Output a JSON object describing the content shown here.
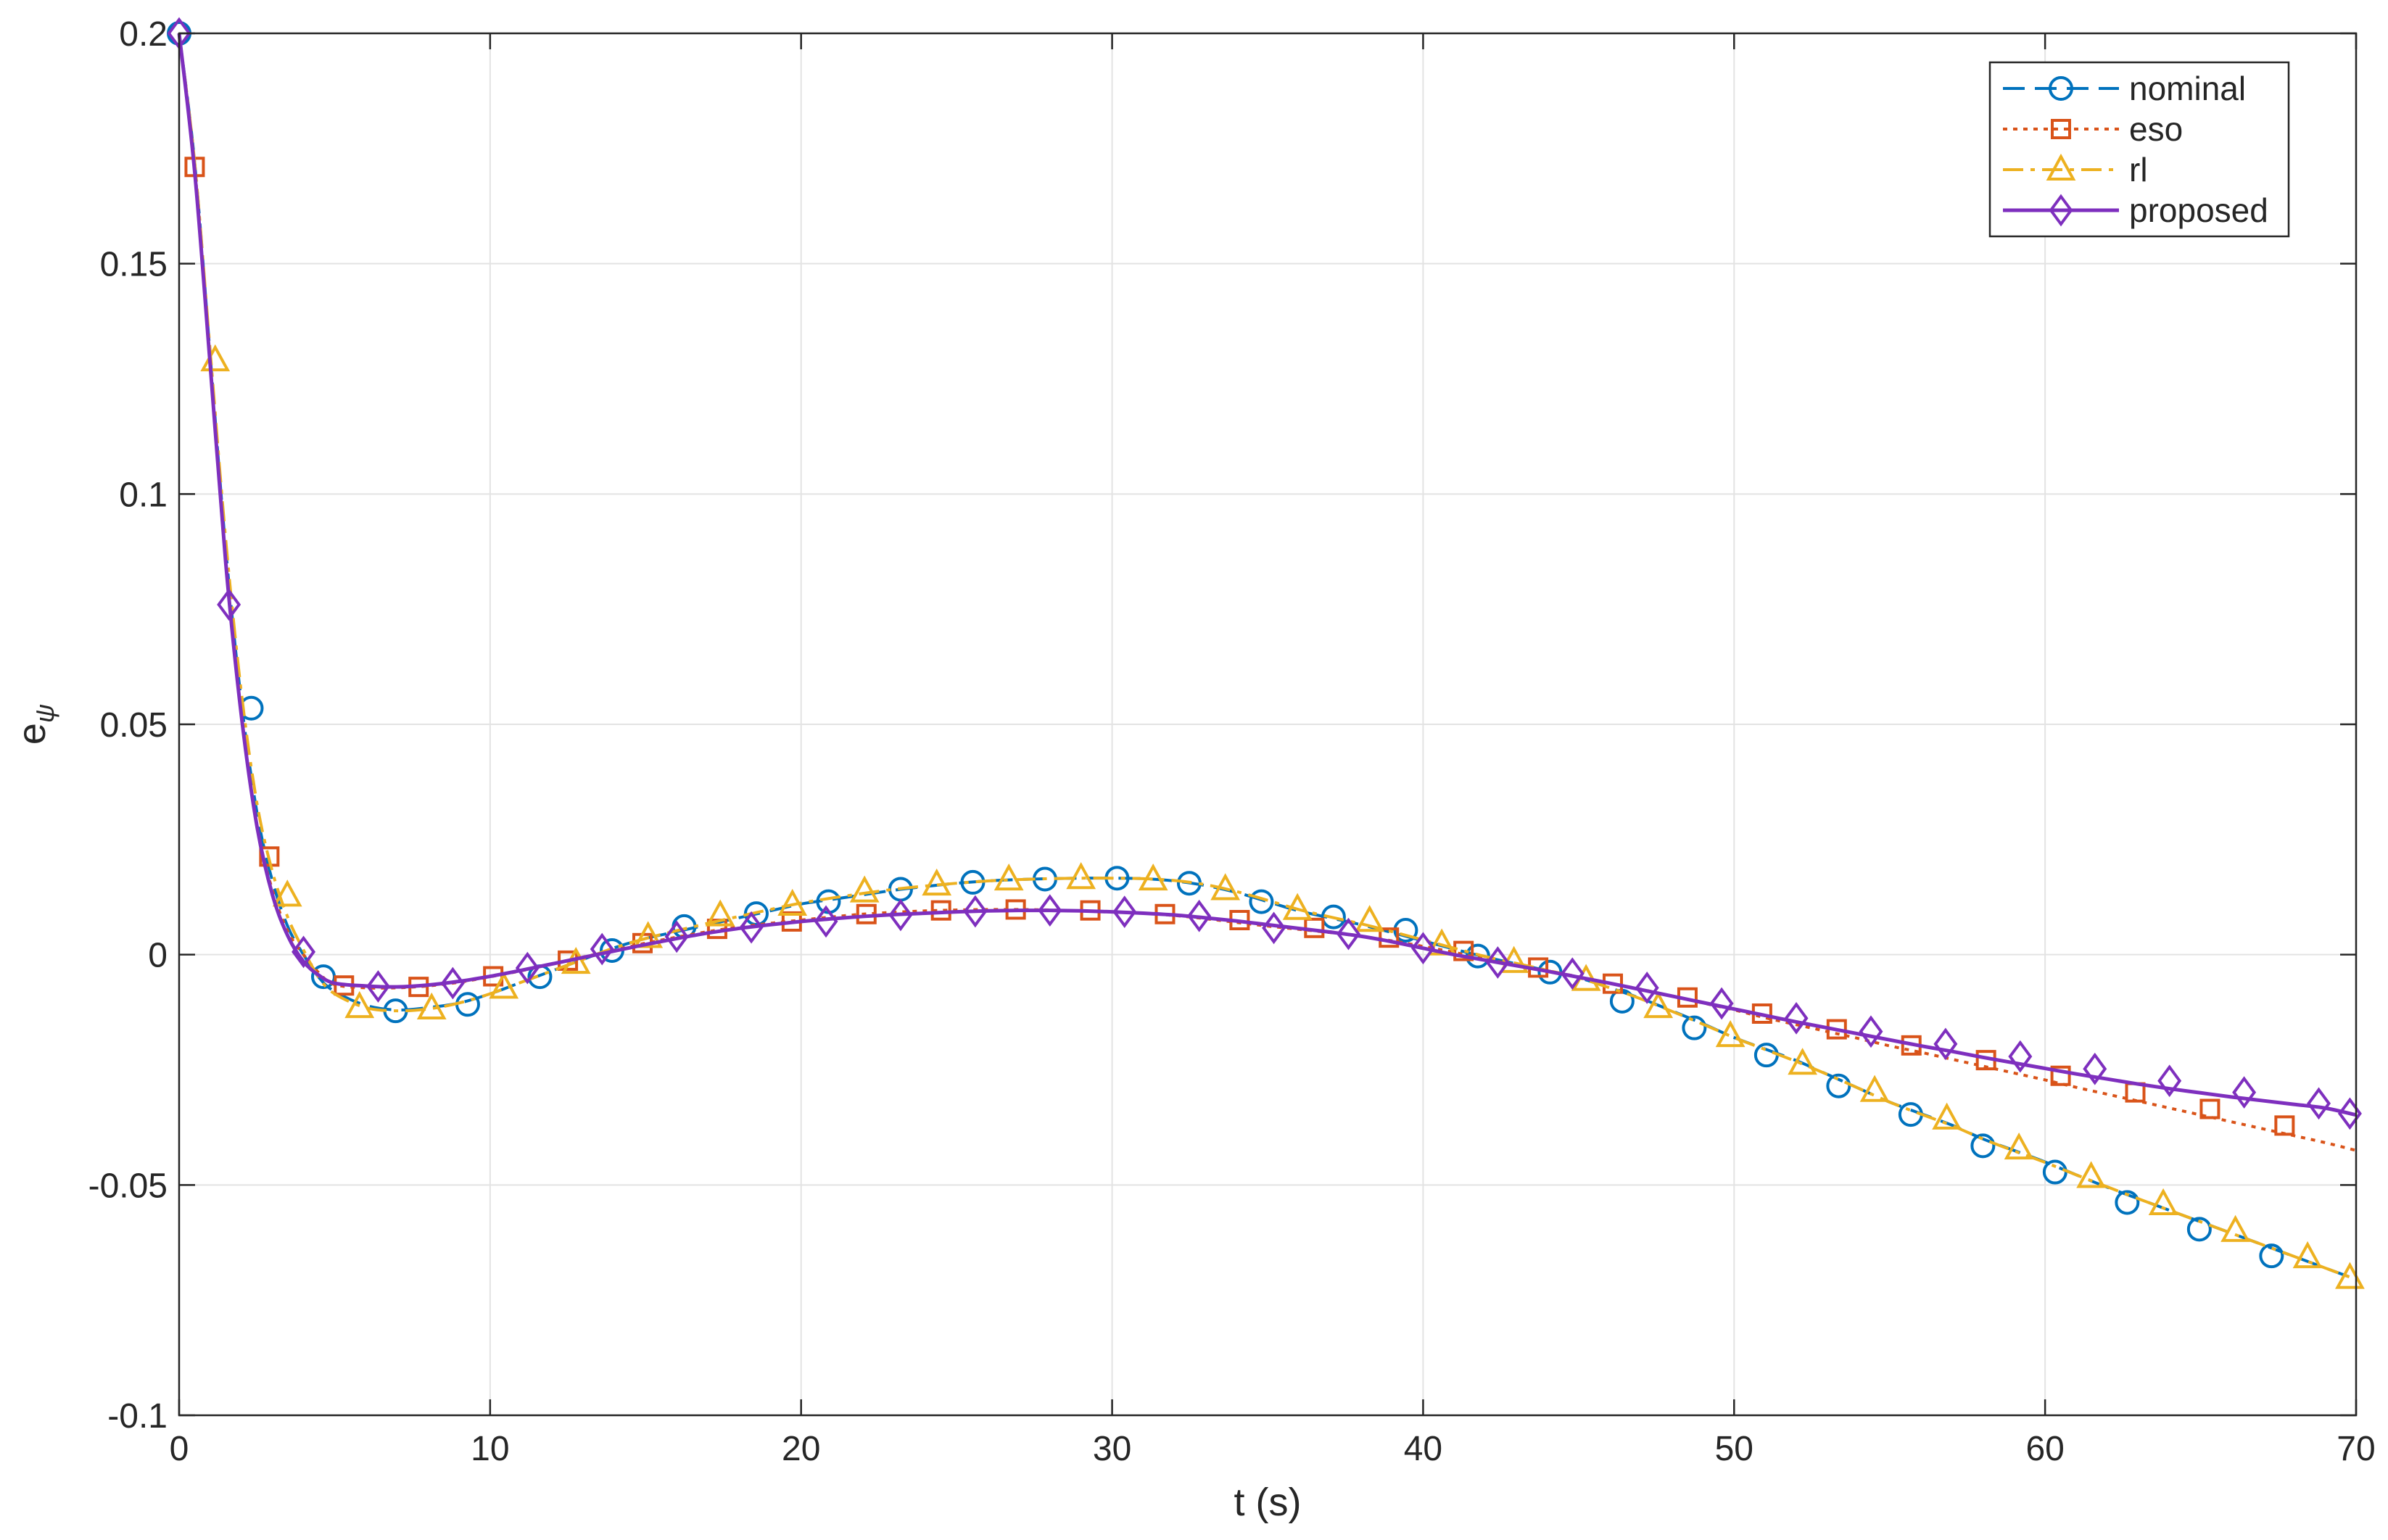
{
  "chart_data": {
    "type": "line",
    "xlabel": "t (s)",
    "ylabel_base": "e",
    "ylabel_sub": "ψ",
    "xlim": [
      0,
      70
    ],
    "ylim": [
      -0.1,
      0.2
    ],
    "xticks": [
      0,
      10,
      20,
      30,
      40,
      50,
      60,
      70
    ],
    "xtick_labels": [
      "0",
      "10",
      "20",
      "30",
      "40",
      "50",
      "60",
      "70"
    ],
    "yticks": [
      -0.1,
      -0.05,
      0,
      0.05,
      0.1,
      0.15,
      0.2
    ],
    "ytick_labels": [
      "-0.1",
      "-0.05",
      "0",
      "0.05",
      "0.1",
      "0.15",
      "0.2"
    ],
    "grid": true,
    "legend_position": "top-right",
    "series": [
      {
        "name": "nominal",
        "color": "#0072BD",
        "dash": "dashed",
        "marker": "circle",
        "x": [
          0,
          0.5,
          1,
          1.5,
          2,
          2.5,
          3,
          3.5,
          4,
          4.5,
          5,
          6,
          7,
          8,
          9,
          10,
          11,
          12,
          13,
          14,
          15,
          16,
          17,
          18,
          19,
          20,
          21,
          22,
          23,
          24,
          25,
          26,
          27,
          28,
          29,
          30,
          31,
          32,
          33,
          34,
          35,
          36,
          37,
          38,
          39,
          40,
          41,
          42,
          43,
          44,
          45,
          46,
          47,
          48,
          49,
          50,
          51,
          52,
          53,
          54,
          55,
          56,
          57,
          58,
          59,
          60,
          61,
          62,
          63,
          64,
          65,
          66,
          67,
          68,
          69,
          70
        ],
        "y": [
          0.2,
          0.172,
          0.13,
          0.088,
          0.055,
          0.031,
          0.016,
          0.006,
          0.0,
          -0.005,
          -0.008,
          -0.011,
          -0.012,
          -0.0115,
          -0.0105,
          -0.0085,
          -0.006,
          -0.0035,
          -0.001,
          0.0015,
          0.0035,
          0.005,
          0.0065,
          0.008,
          0.0095,
          0.011,
          0.012,
          0.013,
          0.014,
          0.0148,
          0.0155,
          0.016,
          0.0163,
          0.0165,
          0.0166,
          0.0166,
          0.0165,
          0.016,
          0.015,
          0.0135,
          0.0115,
          0.0095,
          0.008,
          0.0065,
          0.0048,
          0.003,
          0.0012,
          -0.0005,
          -0.002,
          -0.0035,
          -0.005,
          -0.0072,
          -0.0095,
          -0.0122,
          -0.015,
          -0.018,
          -0.0205,
          -0.023,
          -0.026,
          -0.029,
          -0.032,
          -0.0345,
          -0.037,
          -0.04,
          -0.0425,
          -0.045,
          -0.0478,
          -0.0505,
          -0.053,
          -0.0555,
          -0.058,
          -0.0605,
          -0.063,
          -0.0655,
          -0.068,
          -0.0705
        ],
        "marker_x": [
          0,
          2.32,
          4.64,
          6.96,
          9.28,
          11.6,
          13.92,
          16.24,
          18.56,
          20.88,
          23.2,
          25.52,
          27.84,
          30.16,
          32.48,
          34.8,
          37.12,
          39.44,
          41.76,
          44.08,
          46.4,
          48.72,
          51.04,
          53.36,
          55.68,
          58.0,
          60.32,
          62.64,
          64.96,
          67.28
        ],
        "marker_y": [
          0.2,
          0.0535,
          -0.0048,
          -0.0122,
          -0.0108,
          -0.0048,
          0.0009,
          0.0061,
          0.0089,
          0.0115,
          0.0142,
          0.0157,
          0.0164,
          0.0166,
          0.0155,
          0.0115,
          0.0082,
          0.0053,
          -0.0003,
          -0.0038,
          -0.0101,
          -0.0159,
          -0.0218,
          -0.0285,
          -0.0347,
          -0.0415,
          -0.0472,
          -0.0538,
          -0.0596,
          -0.0654
        ]
      },
      {
        "name": "eso",
        "color": "#D95319",
        "dash": "dotted",
        "marker": "square",
        "x": [
          0,
          0.5,
          1,
          1.5,
          2,
          2.5,
          3,
          3.5,
          4,
          4.5,
          5,
          6,
          7,
          8,
          9,
          10,
          11,
          12,
          13,
          14,
          15,
          16,
          17,
          18,
          19,
          20,
          21,
          22,
          23,
          24,
          25,
          26,
          27,
          28,
          29,
          30,
          31,
          32,
          33,
          34,
          35,
          36,
          37,
          38,
          39,
          40,
          41,
          42,
          43,
          44,
          45,
          46,
          47,
          48,
          49,
          50,
          51,
          52,
          53,
          54,
          55,
          56,
          57,
          58,
          59,
          60,
          61,
          62,
          63,
          64,
          65,
          66,
          67,
          68,
          69,
          70
        ],
        "y": [
          0.2,
          0.171,
          0.128,
          0.085,
          0.052,
          0.028,
          0.014,
          0.005,
          0.0,
          -0.004,
          -0.0065,
          -0.0072,
          -0.0072,
          -0.0068,
          -0.006,
          -0.0048,
          -0.0035,
          -0.002,
          -0.0005,
          0.001,
          0.0025,
          0.0038,
          0.005,
          0.006,
          0.0068,
          0.0075,
          0.0082,
          0.0088,
          0.0092,
          0.0095,
          0.0097,
          0.0098,
          0.0098,
          0.0097,
          0.0095,
          0.0093,
          0.009,
          0.0085,
          0.0078,
          0.007,
          0.0062,
          0.0055,
          0.0048,
          0.004,
          0.003,
          0.0018,
          0.0005,
          -0.001,
          -0.0022,
          -0.0035,
          -0.0048,
          -0.0062,
          -0.0075,
          -0.009,
          -0.0105,
          -0.012,
          -0.0137,
          -0.0152,
          -0.0167,
          -0.0182,
          -0.0198,
          -0.0212,
          -0.0227,
          -0.0242,
          -0.0257,
          -0.0272,
          -0.0288,
          -0.0303,
          -0.0318,
          -0.0333,
          -0.0348,
          -0.0363,
          -0.0378,
          -0.0393,
          -0.0408,
          -0.0425
        ],
        "marker_x": [
          0.5,
          2.9,
          5.3,
          7.7,
          10.1,
          12.5,
          14.9,
          17.3,
          19.7,
          22.1,
          24.5,
          26.9,
          29.3,
          31.7,
          34.1,
          36.5,
          38.9,
          41.3,
          43.7,
          46.1,
          48.5,
          50.9,
          53.3,
          55.7,
          58.1,
          60.5,
          62.9,
          65.3,
          67.7
        ],
        "marker_y": [
          0.171,
          0.0213,
          -0.0067,
          -0.007,
          -0.0047,
          -0.0013,
          0.0025,
          0.0056,
          0.0072,
          0.0088,
          0.0096,
          0.0098,
          0.0096,
          0.0088,
          0.0075,
          0.0058,
          0.0037,
          0.0008,
          -0.0028,
          -0.0063,
          -0.0093,
          -0.0128,
          -0.0162,
          -0.0197,
          -0.0229,
          -0.0263,
          -0.0299,
          -0.0335,
          -0.0371
        ]
      },
      {
        "name": "rl",
        "color": "#EDB120",
        "dash": "dashdot",
        "marker": "triangle",
        "x": [
          0,
          0.5,
          1,
          1.5,
          2,
          2.5,
          3,
          3.5,
          4,
          4.5,
          5,
          6,
          7,
          8,
          9,
          10,
          11,
          12,
          13,
          14,
          15,
          16,
          17,
          18,
          19,
          20,
          21,
          22,
          23,
          24,
          25,
          26,
          27,
          28,
          29,
          30,
          31,
          32,
          33,
          34,
          35,
          36,
          37,
          38,
          39,
          40,
          41,
          42,
          43,
          44,
          45,
          46,
          47,
          48,
          49,
          50,
          51,
          52,
          53,
          54,
          55,
          56,
          57,
          58,
          59,
          60,
          61,
          62,
          63,
          64,
          65,
          66,
          67,
          68,
          69,
          70
        ],
        "y": [
          0.2,
          0.172,
          0.131,
          0.09,
          0.057,
          0.033,
          0.018,
          0.008,
          0.001,
          -0.005,
          -0.0085,
          -0.0115,
          -0.0122,
          -0.0118,
          -0.0105,
          -0.0085,
          -0.006,
          -0.0035,
          -0.001,
          0.0015,
          0.0035,
          0.0052,
          0.0068,
          0.0083,
          0.0098,
          0.0112,
          0.0123,
          0.0133,
          0.0142,
          0.0149,
          0.0155,
          0.016,
          0.0163,
          0.0165,
          0.0166,
          0.0166,
          0.0165,
          0.0161,
          0.0152,
          0.0137,
          0.0118,
          0.0098,
          0.0082,
          0.0067,
          0.005,
          0.0032,
          0.0014,
          -0.0004,
          -0.0019,
          -0.0034,
          -0.005,
          -0.0072,
          -0.0096,
          -0.0123,
          -0.0151,
          -0.018,
          -0.0206,
          -0.0232,
          -0.026,
          -0.029,
          -0.032,
          -0.0346,
          -0.0371,
          -0.04,
          -0.0426,
          -0.0451,
          -0.0478,
          -0.0504,
          -0.053,
          -0.0555,
          -0.058,
          -0.0605,
          -0.063,
          -0.0655,
          -0.068,
          -0.0705
        ],
        "marker_x": [
          1.16,
          3.48,
          5.8,
          8.12,
          10.44,
          12.76,
          15.08,
          17.4,
          19.72,
          22.04,
          24.36,
          26.68,
          29.0,
          31.32,
          33.64,
          35.96,
          38.28,
          40.6,
          42.92,
          45.24,
          47.56,
          49.88,
          52.2,
          54.52,
          56.84,
          59.16,
          61.48,
          63.8,
          66.12,
          68.44,
          69.8
        ],
        "marker_y": [
          0.129,
          0.0128,
          -0.0114,
          -0.0117,
          -0.0072,
          -0.0018,
          0.0038,
          0.0085,
          0.0108,
          0.0137,
          0.0152,
          0.0163,
          0.0166,
          0.0163,
          0.0142,
          0.0099,
          0.0073,
          0.0022,
          -0.0016,
          -0.0055,
          -0.0114,
          -0.0177,
          -0.0237,
          -0.0296,
          -0.0356,
          -0.0421,
          -0.0483,
          -0.0542,
          -0.06,
          -0.0657,
          -0.0702
        ]
      },
      {
        "name": "proposed",
        "color": "#7E2FBE",
        "dash": "solid",
        "marker": "diamond",
        "x": [
          0,
          0.5,
          1,
          1.5,
          2,
          2.5,
          3,
          3.5,
          4,
          4.5,
          5,
          6,
          7,
          8,
          9,
          10,
          11,
          12,
          13,
          14,
          15,
          16,
          17,
          18,
          19,
          20,
          21,
          22,
          23,
          24,
          25,
          26,
          27,
          28,
          29,
          30,
          31,
          32,
          33,
          34,
          35,
          36,
          37,
          38,
          39,
          40,
          41,
          42,
          43,
          44,
          45,
          46,
          47,
          48,
          49,
          50,
          51,
          52,
          53,
          54,
          55,
          56,
          57,
          58,
          59,
          60,
          61,
          62,
          63,
          64,
          65,
          66,
          67,
          68,
          69,
          70
        ],
        "y": [
          0.2,
          0.17,
          0.128,
          0.085,
          0.052,
          0.028,
          0.013,
          0.004,
          -0.0015,
          -0.0045,
          -0.0062,
          -0.0068,
          -0.007,
          -0.0066,
          -0.0058,
          -0.0047,
          -0.0034,
          -0.002,
          -0.0006,
          0.0008,
          0.0022,
          0.0035,
          0.0047,
          0.0057,
          0.0065,
          0.0072,
          0.0078,
          0.0083,
          0.0087,
          0.009,
          0.0093,
          0.0095,
          0.0096,
          0.0096,
          0.0095,
          0.0093,
          0.009,
          0.0086,
          0.008,
          0.0073,
          0.0065,
          0.0057,
          0.0049,
          0.004,
          0.0028,
          0.0014,
          0.0,
          -0.0012,
          -0.0024,
          -0.0036,
          -0.0049,
          -0.0062,
          -0.0076,
          -0.009,
          -0.0104,
          -0.0118,
          -0.0132,
          -0.0146,
          -0.0159,
          -0.0172,
          -0.0185,
          -0.0198,
          -0.021,
          -0.0223,
          -0.0235,
          -0.0247,
          -0.0259,
          -0.027,
          -0.0281,
          -0.0291,
          -0.03,
          -0.0309,
          -0.0317,
          -0.0325,
          -0.0333,
          -0.0348
        ],
        "marker_x": [
          0,
          1.6,
          4.0,
          6.4,
          8.8,
          11.2,
          13.6,
          16.0,
          18.4,
          20.8,
          23.2,
          25.6,
          28.0,
          30.4,
          32.8,
          35.2,
          37.6,
          40.0,
          42.4,
          44.8,
          47.2,
          49.6,
          52.0,
          54.4,
          56.8,
          59.2,
          61.6,
          64.0,
          66.4,
          68.8,
          69.8
        ],
        "marker_y": [
          0.2,
          0.076,
          0.0006,
          -0.0069,
          -0.0062,
          -0.0029,
          0.0012,
          0.0039,
          0.0059,
          0.0072,
          0.0086,
          0.0094,
          0.0096,
          0.0093,
          0.0084,
          0.0058,
          0.0045,
          0.0014,
          -0.0017,
          -0.0041,
          -0.0072,
          -0.0106,
          -0.0138,
          -0.0167,
          -0.0194,
          -0.0221,
          -0.0248,
          -0.0274,
          -0.0299,
          -0.0323,
          -0.0345
        ]
      }
    ]
  }
}
